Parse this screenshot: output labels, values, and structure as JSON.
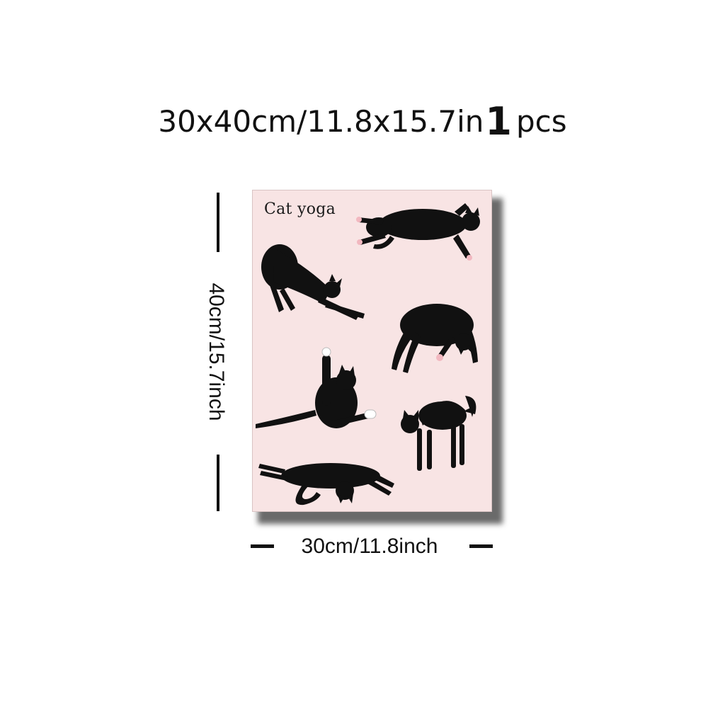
{
  "headline": {
    "size_text": "30x40cm/11.8x15.7in",
    "quantity_number": "1",
    "quantity_unit": "pcs"
  },
  "poster": {
    "title": "Cat yoga",
    "background_color": "#f8e4e4",
    "cat_color": "#111111",
    "paw_color": "#f2b8c0",
    "cats": [
      "cat-lying-on-back-icon",
      "cat-stretching-downward-icon",
      "cat-arched-upside-down-icon",
      "cat-leg-raised-grooming-icon",
      "cat-arched-back-standing-icon",
      "cat-lying-on-side-icon"
    ]
  },
  "dimensions": {
    "height_label": "40cm/15.7inch",
    "width_label": "30cm/11.8inch"
  }
}
